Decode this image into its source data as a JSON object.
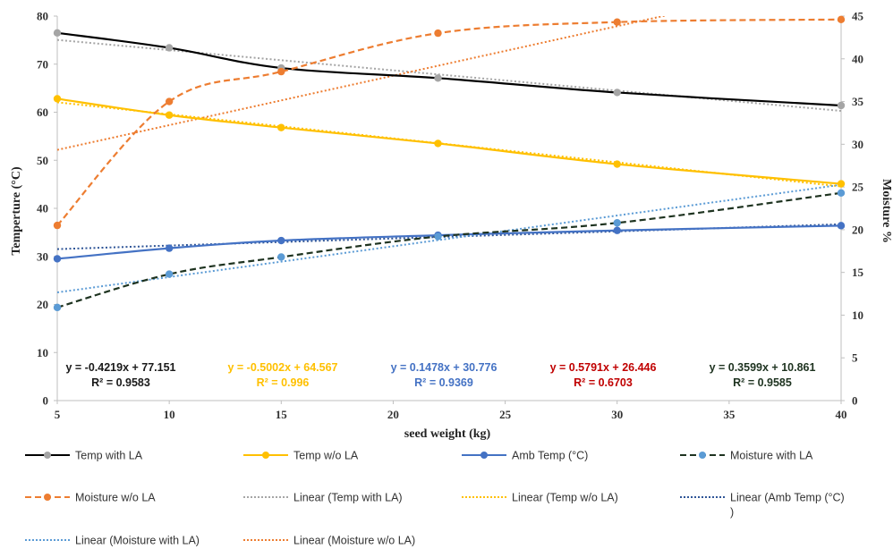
{
  "chart_data": {
    "type": "line",
    "xlabel": "seed weight (kg)",
    "ylabel_left": "Temperture (°C)",
    "ylabel_right": "Moisture %",
    "x_ticks": [
      "5",
      "10",
      "15",
      "20",
      "25",
      "30",
      "35",
      "40"
    ],
    "y_left_ticks": [
      "0",
      "10",
      "20",
      "30",
      "40",
      "50",
      "60",
      "70",
      "80"
    ],
    "y_right_ticks": [
      "0",
      "5",
      "10",
      "15",
      "20",
      "25",
      "30",
      "35",
      "40",
      "45"
    ],
    "xlim": [
      5,
      40
    ],
    "ylim_left": [
      0,
      80
    ],
    "ylim_right": [
      0,
      45
    ],
    "x": [
      5,
      10,
      15,
      22,
      30,
      40
    ],
    "series": [
      {
        "name": "Temp with LA",
        "axis": "left",
        "color": "#000000",
        "marker": "#a5a5a5",
        "dash": "solid",
        "values": [
          76.5,
          73.4,
          69.2,
          67.1,
          64.1,
          61.4
        ]
      },
      {
        "name": "Temp w/o LA",
        "axis": "left",
        "color": "#ffc000",
        "marker": "#ffc000",
        "dash": "solid",
        "values": [
          62.8,
          59.4,
          56.8,
          53.5,
          49.2,
          45.1
        ]
      },
      {
        "name": "Amb Temp (°C)",
        "axis": "left",
        "color": "#4472c4",
        "marker": "#4472c4",
        "dash": "solid",
        "values": [
          29.5,
          31.7,
          33.3,
          34.4,
          35.4,
          36.4
        ]
      },
      {
        "name": "Moisture with LA",
        "axis": "right",
        "color": "#1e3320",
        "marker": "#5b9bd5",
        "dash": "dashed",
        "values": [
          10.9,
          14.8,
          16.8,
          19.2,
          20.8,
          24.3
        ]
      },
      {
        "name": "Moisture w/o LA",
        "axis": "right",
        "color": "#ed7d31",
        "marker": "#ed7d31",
        "dash": "dashed",
        "values": [
          20.5,
          35.0,
          38.5,
          43.0,
          44.3,
          44.6
        ]
      }
    ],
    "trendlines": [
      {
        "name": "Linear (Temp with LA)",
        "axis": "left",
        "color": "#a5a5a5",
        "slope": -0.4219,
        "intercept": 77.151,
        "equation": "y = -0.4219x + 77.151",
        "r2": "R² = 0.9583",
        "label_color": "#1a1a1a"
      },
      {
        "name": "Linear (Temp w/o LA)",
        "axis": "left",
        "color": "#ffc000",
        "slope": -0.5002,
        "intercept": 64.567,
        "equation": "y = -0.5002x + 64.567",
        "r2": "R² = 0.996",
        "label_color": "#ffc000"
      },
      {
        "name": "Linear (Amb Temp (°C)",
        "axis": "left",
        "color": "#2f5597",
        "slope": 0.1478,
        "intercept": 30.776,
        "equation": "y = 0.1478x + 30.776",
        "r2": "R² = 0.9369",
        "label_color": "#4472c4"
      },
      {
        "name": "Linear (Moisture with LA)",
        "axis": "right",
        "color": "#5b9bd5",
        "slope": 0.3599,
        "intercept": 10.861,
        "equation": "y = 0.3599x + 10.861",
        "r2": "R² = 0.9585",
        "label_color": "#1e3320"
      },
      {
        "name": "Linear (Moisture w/o LA)",
        "axis": "right",
        "color": "#ed7d31",
        "slope": 0.5791,
        "intercept": 26.446,
        "equation": "y = 0.5791x + 26.446",
        "r2": "R² = 0.6703",
        "label_color": "#c00000"
      }
    ],
    "equation_order": [
      0,
      1,
      2,
      4,
      3
    ],
    "legend": [
      {
        "label": "Temp with LA",
        "color": "#000000",
        "marker": "#a5a5a5",
        "style": "solid"
      },
      {
        "label": "Temp w/o LA",
        "color": "#ffc000",
        "marker": "#ffc000",
        "style": "solid"
      },
      {
        "label": "Amb Temp (°C)",
        "color": "#4472c4",
        "marker": "#4472c4",
        "style": "solid"
      },
      {
        "label": "Moisture with LA",
        "color": "#1e3320",
        "marker": "#5b9bd5",
        "style": "dashed"
      },
      {
        "label": "Moisture w/o LA",
        "color": "#ed7d31",
        "marker": "#ed7d31",
        "style": "dashed"
      },
      {
        "label": "Linear (Temp with LA)",
        "color": "#a5a5a5",
        "style": "dotted"
      },
      {
        "label": "Linear (Temp w/o LA)",
        "color": "#ffc000",
        "style": "dotted"
      },
      {
        "label": "Linear (Amb Temp (°C)",
        "label_cont": ")",
        "color": "#2f5597",
        "style": "dotted"
      },
      {
        "label": "Linear (Moisture with LA)",
        "color": "#5b9bd5",
        "style": "dotted"
      },
      {
        "label": "Linear (Moisture w/o LA)",
        "color": "#ed7d31",
        "style": "dotted"
      }
    ],
    "legend_position": "bottom",
    "grid": false
  }
}
